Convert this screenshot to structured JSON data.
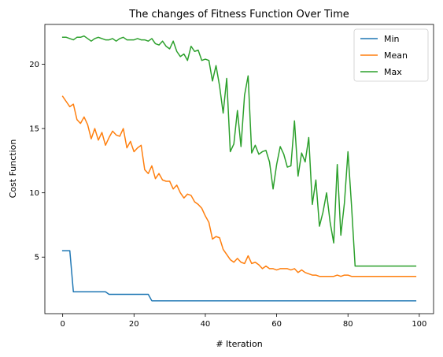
{
  "chart_data": {
    "type": "line",
    "title": "The changes of Fitness Function Over Time",
    "xlabel": "# Iteration",
    "ylabel": "Cost Function",
    "xlim": [
      -5,
      104
    ],
    "ylim": [
      0.6,
      23.1
    ],
    "xticks": [
      0,
      20,
      40,
      60,
      80,
      100
    ],
    "xtick_labels": [
      "0",
      "20",
      "40",
      "60",
      "80",
      "100"
    ],
    "yticks": [
      5,
      10,
      15,
      20
    ],
    "ytick_labels": [
      "5",
      "10",
      "15",
      "20"
    ],
    "grid": false,
    "legend": "top-right",
    "series": [
      {
        "name": "Min",
        "color": "#1f77b4",
        "values": [
          5.5,
          5.5,
          5.5,
          2.3,
          2.3,
          2.3,
          2.3,
          2.3,
          2.3,
          2.3,
          2.3,
          2.3,
          2.3,
          2.1,
          2.1,
          2.1,
          2.1,
          2.1,
          2.1,
          2.1,
          2.1,
          2.1,
          2.1,
          2.1,
          2.1,
          1.6,
          1.6,
          1.6,
          1.6,
          1.6,
          1.6,
          1.6,
          1.6,
          1.6,
          1.6,
          1.6,
          1.6,
          1.6,
          1.6,
          1.6,
          1.6,
          1.6,
          1.6,
          1.6,
          1.6,
          1.6,
          1.6,
          1.6,
          1.6,
          1.6,
          1.6,
          1.6,
          1.6,
          1.6,
          1.6,
          1.6,
          1.6,
          1.6,
          1.6,
          1.6,
          1.6,
          1.6,
          1.6,
          1.6,
          1.6,
          1.6,
          1.6,
          1.6,
          1.6,
          1.6,
          1.6,
          1.6,
          1.6,
          1.6,
          1.6,
          1.6,
          1.6,
          1.6,
          1.6,
          1.6,
          1.6,
          1.6,
          1.6,
          1.6,
          1.6,
          1.6,
          1.6,
          1.6,
          1.6,
          1.6,
          1.6,
          1.6,
          1.6,
          1.6,
          1.6,
          1.6,
          1.6,
          1.6,
          1.6,
          1.6
        ]
      },
      {
        "name": "Mean",
        "color": "#ff7f0e",
        "values": [
          17.5,
          17.1,
          16.7,
          16.9,
          15.7,
          15.4,
          15.9,
          15.3,
          14.2,
          15.0,
          14.1,
          14.7,
          13.7,
          14.3,
          14.8,
          14.5,
          14.4,
          15.0,
          13.5,
          14.0,
          13.2,
          13.5,
          13.7,
          11.8,
          11.5,
          12.1,
          11.1,
          11.5,
          11.0,
          10.9,
          10.9,
          10.3,
          10.6,
          10.0,
          9.6,
          9.9,
          9.8,
          9.3,
          9.1,
          8.8,
          8.2,
          7.7,
          6.4,
          6.6,
          6.5,
          5.6,
          5.2,
          4.8,
          4.6,
          4.9,
          4.6,
          4.5,
          5.1,
          4.5,
          4.6,
          4.4,
          4.1,
          4.3,
          4.1,
          4.1,
          4.0,
          4.1,
          4.1,
          4.1,
          4.0,
          4.1,
          3.8,
          4.0,
          3.8,
          3.7,
          3.6,
          3.6,
          3.5,
          3.5,
          3.5,
          3.5,
          3.5,
          3.6,
          3.5,
          3.6,
          3.6,
          3.5,
          3.5,
          3.5,
          3.5,
          3.5,
          3.5,
          3.5,
          3.5,
          3.5,
          3.5,
          3.5,
          3.5,
          3.5,
          3.5,
          3.5,
          3.5,
          3.5,
          3.5,
          3.5
        ]
      },
      {
        "name": "Max",
        "color": "#2ca02c",
        "values": [
          22.1,
          22.1,
          22.0,
          21.9,
          22.1,
          22.1,
          22.2,
          22.0,
          21.8,
          22.0,
          22.1,
          22.0,
          21.9,
          21.9,
          22.0,
          21.8,
          22.0,
          22.1,
          21.9,
          21.9,
          21.9,
          22.0,
          21.9,
          21.9,
          21.8,
          22.0,
          21.6,
          21.5,
          21.8,
          21.4,
          21.2,
          21.8,
          21.0,
          20.6,
          20.8,
          20.3,
          21.4,
          21.0,
          21.1,
          20.3,
          20.4,
          20.3,
          18.7,
          19.9,
          18.3,
          16.2,
          18.9,
          13.2,
          13.8,
          16.4,
          13.6,
          17.6,
          19.1,
          13.1,
          13.7,
          13.0,
          13.2,
          13.3,
          12.4,
          10.3,
          12.2,
          13.6,
          13.0,
          12.0,
          12.1,
          15.6,
          11.3,
          13.1,
          12.4,
          14.3,
          9.1,
          11.0,
          7.4,
          8.5,
          10.0,
          7.7,
          6.1,
          12.2,
          6.7,
          9.2,
          13.2,
          9.0,
          4.3,
          4.3,
          4.3,
          4.3,
          4.3,
          4.3,
          4.3,
          4.3,
          4.3,
          4.3,
          4.3,
          4.3,
          4.3,
          4.3,
          4.3,
          4.3,
          4.3,
          4.3
        ]
      }
    ]
  }
}
